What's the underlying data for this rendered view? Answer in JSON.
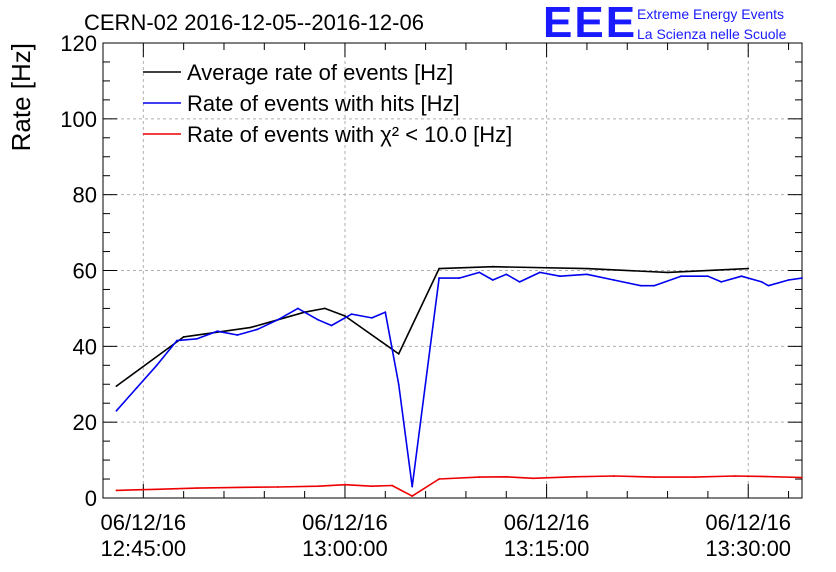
{
  "header": {
    "title": "CERN-02 2016-12-05--2016-12-06",
    "logo_mark": "EEE",
    "logo_line1": "Extreme Energy Events",
    "logo_line2": "La Scienza nelle Scuole"
  },
  "colors": {
    "average": "#000000",
    "hits": "#0000ee",
    "chi2": "#ee0000",
    "logo": "#1a1aff",
    "grid": "#b0b0b0"
  },
  "chart_data": {
    "type": "line",
    "title": "CERN-02 2016-12-05--2016-12-06",
    "ylabel": "Rate [Hz]",
    "xlabel": "",
    "xlim": [
      "12:42:00",
      "13:34:00"
    ],
    "ylim": [
      0,
      120
    ],
    "y_ticks": [
      "0",
      "20",
      "40",
      "60",
      "80",
      "100",
      "120"
    ],
    "x_ticks": [
      {
        "date": "06/12/16",
        "time": "12:45:00"
      },
      {
        "date": "06/12/16",
        "time": "13:00:00"
      },
      {
        "date": "06/12/16",
        "time": "13:15:00"
      },
      {
        "date": "06/12/16",
        "time": "13:30:00"
      }
    ],
    "grid": true,
    "legend_position": "top-left",
    "series": [
      {
        "name": "Average rate of events [Hz]",
        "color": "#000000",
        "points": [
          [
            "12:43:00",
            29.5
          ],
          [
            "12:48:00",
            42.5
          ],
          [
            "12:53:00",
            45.0
          ],
          [
            "12:57:00",
            49.0
          ],
          [
            "12:58:30",
            50.0
          ],
          [
            "13:00:00",
            48.0
          ],
          [
            "13:04:00",
            38.0
          ],
          [
            "13:07:00",
            60.5
          ],
          [
            "13:11:00",
            61.0
          ],
          [
            "13:18:00",
            60.5
          ],
          [
            "13:24:00",
            59.5
          ],
          [
            "13:30:00",
            60.5
          ]
        ]
      },
      {
        "name": "Rate of events with hits [Hz]",
        "color": "#0000ee",
        "points": [
          [
            "12:43:00",
            23.0
          ],
          [
            "12:44:30",
            29.0
          ],
          [
            "12:46:00",
            35.0
          ],
          [
            "12:47:30",
            41.5
          ],
          [
            "12:49:00",
            42.0
          ],
          [
            "12:50:30",
            44.0
          ],
          [
            "12:52:00",
            43.0
          ],
          [
            "12:53:30",
            44.5
          ],
          [
            "12:55:00",
            47.0
          ],
          [
            "12:56:30",
            50.0
          ],
          [
            "12:58:00",
            47.0
          ],
          [
            "12:59:00",
            45.5
          ],
          [
            "13:00:30",
            48.5
          ],
          [
            "13:02:00",
            47.5
          ],
          [
            "13:03:00",
            49.0
          ],
          [
            "13:04:00",
            30.0
          ],
          [
            "13:05:00",
            3.0
          ],
          [
            "13:07:00",
            58.0
          ],
          [
            "13:08:30",
            58.0
          ],
          [
            "13:10:00",
            59.5
          ],
          [
            "13:11:00",
            57.5
          ],
          [
            "13:12:00",
            59.0
          ],
          [
            "13:13:00",
            57.0
          ],
          [
            "13:14:30",
            59.5
          ],
          [
            "13:16:00",
            58.5
          ],
          [
            "13:18:00",
            59.0
          ],
          [
            "13:20:00",
            57.5
          ],
          [
            "13:22:00",
            56.0
          ],
          [
            "13:23:00",
            56.0
          ],
          [
            "13:25:00",
            58.5
          ],
          [
            "13:27:00",
            58.5
          ],
          [
            "13:28:00",
            57.0
          ],
          [
            "13:29:30",
            58.5
          ],
          [
            "13:31:00",
            57.0
          ],
          [
            "13:31:30",
            56.0
          ],
          [
            "13:33:00",
            57.5
          ],
          [
            "13:34:00",
            58.0
          ]
        ]
      },
      {
        "name": "Rate of events with χ² < 10.0 [Hz]",
        "color": "#ee0000",
        "points": [
          [
            "12:43:00",
            2.0
          ],
          [
            "12:46:00",
            2.3
          ],
          [
            "12:49:00",
            2.6
          ],
          [
            "12:52:00",
            2.8
          ],
          [
            "12:55:00",
            2.9
          ],
          [
            "12:58:00",
            3.1
          ],
          [
            "13:00:00",
            3.5
          ],
          [
            "13:02:00",
            3.1
          ],
          [
            "13:03:30",
            3.3
          ],
          [
            "13:05:00",
            0.5
          ],
          [
            "13:07:00",
            5.0
          ],
          [
            "13:10:00",
            5.5
          ],
          [
            "13:12:00",
            5.6
          ],
          [
            "13:14:00",
            5.2
          ],
          [
            "13:17:00",
            5.6
          ],
          [
            "13:20:00",
            5.8
          ],
          [
            "13:23:00",
            5.5
          ],
          [
            "13:26:00",
            5.5
          ],
          [
            "13:29:00",
            5.8
          ],
          [
            "13:31:00",
            5.7
          ],
          [
            "13:34:00",
            5.4
          ]
        ]
      }
    ]
  }
}
